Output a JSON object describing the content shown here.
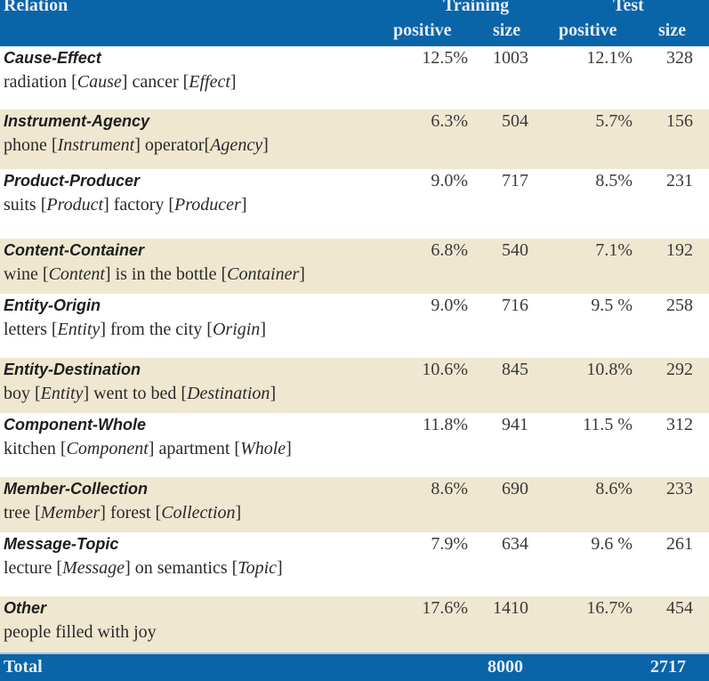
{
  "header": {
    "relation": "Relation",
    "training": "Training",
    "test": "Test",
    "positive": "positive",
    "size": "size"
  },
  "rows": [
    {
      "name": "Cause-Effect",
      "example": [
        {
          "t": "radiation "
        },
        {
          "t": "[",
          "b": 1
        },
        {
          "t": "Cause",
          "i": 1
        },
        {
          "t": "] cancer "
        },
        {
          "t": "[",
          "b": 1
        },
        {
          "t": "Effect",
          "i": 1
        },
        {
          "t": "]"
        }
      ],
      "example_text": "radiation [Cause] cancer [Effect]",
      "train_pos": "12.5%",
      "train_size": "1003",
      "test_pos": "12.1%",
      "test_size": "328",
      "shade": "white"
    },
    {
      "name": "Instrument-Agency",
      "example_text": "phone [Instrument] operator[Agency]",
      "train_pos": "6.3%",
      "train_size": "504",
      "test_pos": "5.7%",
      "test_size": "156",
      "shade": "beige"
    },
    {
      "name": "Product-Producer",
      "example_text": "suits [Product] factory [Producer]",
      "train_pos": "9.0%",
      "train_size": "717",
      "test_pos": "8.5%",
      "test_size": "231",
      "shade": "white"
    },
    {
      "name": "Content-Container",
      "example_text": "wine [Content] is in the bottle [Container]",
      "train_pos": "6.8%",
      "train_size": "540",
      "test_pos": "7.1%",
      "test_size": "192",
      "shade": "beige"
    },
    {
      "name": "Entity-Origin",
      "example_text": "letters [Entity] from the city [Origin]",
      "train_pos": "9.0%",
      "train_size": "716",
      "test_pos": "9.5 %",
      "test_size": "258",
      "shade": "white"
    },
    {
      "name": "Entity-Destination",
      "example_text": "boy [Entity] went to bed [Destination]",
      "train_pos": "10.6%",
      "train_size": "845",
      "test_pos": "10.8%",
      "test_size": "292",
      "shade": "beige"
    },
    {
      "name": "Component-Whole",
      "example_text": "kitchen [Component] apartment [Whole]",
      "train_pos": "11.8%",
      "train_size": "941",
      "test_pos": "11.5 %",
      "test_size": "312",
      "shade": "white"
    },
    {
      "name": "Member-Collection",
      "example_text": "tree [Member] forest [Collection]",
      "train_pos": "8.6%",
      "train_size": "690",
      "test_pos": "8.6%",
      "test_size": "233",
      "shade": "beige"
    },
    {
      "name": "Message-Topic",
      "example_text": "lecture [Message] on semantics [Topic]",
      "train_pos": "7.9%",
      "train_size": "634",
      "test_pos": "9.6 %",
      "test_size": "261",
      "shade": "white"
    },
    {
      "name": "Other",
      "example_text": "people filled with joy",
      "train_pos": "17.6%",
      "train_size": "1410",
      "test_pos": "16.7%",
      "test_size": "454",
      "shade": "beige"
    }
  ],
  "total": {
    "label": "Total",
    "train_size": "8000",
    "test_size": "2717"
  },
  "colors": {
    "header_bg": "#0a64a8",
    "header_text": "#e6eef7",
    "beige_row": "#efe7d0",
    "white_row": "#ffffff"
  }
}
